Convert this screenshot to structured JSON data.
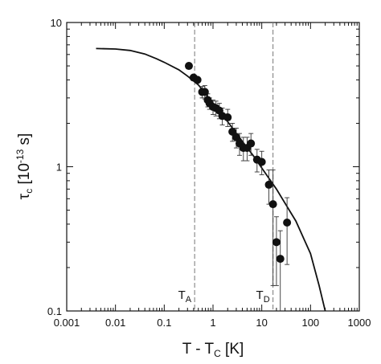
{
  "chart_data": {
    "type": "scatter",
    "x_scale": "log",
    "y_scale": "log",
    "xlim": [
      0.001,
      1000
    ],
    "ylim": [
      0.1,
      10
    ],
    "grid": false,
    "x_ticks": [
      {
        "value": 0.001,
        "label": "0.001"
      },
      {
        "value": 0.01,
        "label": "0.01"
      },
      {
        "value": 0.1,
        "label": "0.1"
      },
      {
        "value": 1,
        "label": "1"
      },
      {
        "value": 10,
        "label": "10"
      },
      {
        "value": 100,
        "label": "100"
      },
      {
        "value": 1000,
        "label": "1000"
      }
    ],
    "y_ticks": [
      {
        "value": 0.1,
        "label": "0.1"
      },
      {
        "value": 1,
        "label": "1"
      },
      {
        "value": 10,
        "label": "10"
      }
    ],
    "xlabel": {
      "main": "T - T",
      "sub": "C",
      "tail": " [K]"
    },
    "ylabel": {
      "main": "τ",
      "sub": "c",
      "mid": " [10",
      "sup": "-13",
      "tail": " s]"
    },
    "markers": [
      {
        "x": 0.42,
        "main": "T",
        "sub": "A"
      },
      {
        "x": 17,
        "main": "T",
        "sub": "D"
      }
    ],
    "points": [
      {
        "x": 0.32,
        "y": 5.0,
        "err": 0
      },
      {
        "x": 0.4,
        "y": 4.15,
        "err": 0
      },
      {
        "x": 0.48,
        "y": 4.0,
        "err": 0
      },
      {
        "x": 0.6,
        "y": 3.3,
        "err": 0.3
      },
      {
        "x": 0.68,
        "y": 3.3,
        "err": 0.35
      },
      {
        "x": 0.78,
        "y": 2.9,
        "err": 0.3
      },
      {
        "x": 0.85,
        "y": 2.75,
        "err": 0.25
      },
      {
        "x": 1.0,
        "y": 2.6,
        "err": 0.3
      },
      {
        "x": 1.15,
        "y": 2.55,
        "err": 0.3
      },
      {
        "x": 1.35,
        "y": 2.45,
        "err": 0.3
      },
      {
        "x": 1.55,
        "y": 2.25,
        "err": 0.3
      },
      {
        "x": 2.0,
        "y": 2.2,
        "err": 0.3
      },
      {
        "x": 2.5,
        "y": 1.75,
        "err": 0.25
      },
      {
        "x": 3.0,
        "y": 1.6,
        "err": 0.25
      },
      {
        "x": 3.5,
        "y": 1.45,
        "err": 0.25
      },
      {
        "x": 4.2,
        "y": 1.35,
        "err": 0.25
      },
      {
        "x": 5.0,
        "y": 1.35,
        "err": 0.25
      },
      {
        "x": 6.0,
        "y": 1.45,
        "err": 0.25
      },
      {
        "x": 8.0,
        "y": 1.12,
        "err": 0.2
      },
      {
        "x": 10.0,
        "y": 1.08,
        "err": 0.2
      },
      {
        "x": 14.0,
        "y": 0.75,
        "err": 0.2
      },
      {
        "x": 17.0,
        "y": 0.55,
        "err": 0.4
      },
      {
        "x": 20.0,
        "y": 0.3,
        "err": 0.15
      },
      {
        "x": 24.0,
        "y": 0.23,
        "err": 0.13
      },
      {
        "x": 33.0,
        "y": 0.41,
        "err": 0.2
      }
    ],
    "fit_curve": [
      [
        0.004,
        6.6
      ],
      [
        0.01,
        6.55
      ],
      [
        0.02,
        6.4
      ],
      [
        0.04,
        6.05
      ],
      [
        0.07,
        5.6
      ],
      [
        0.1,
        5.3
      ],
      [
        0.2,
        4.7
      ],
      [
        0.3,
        4.25
      ],
      [
        0.5,
        3.7
      ],
      [
        1.0,
        2.75
      ],
      [
        2.0,
        2.05
      ],
      [
        4.0,
        1.5
      ],
      [
        7.0,
        1.17
      ],
      [
        10.0,
        0.98
      ],
      [
        20.0,
        0.7
      ],
      [
        50.0,
        0.42
      ],
      [
        100.0,
        0.25
      ],
      [
        150.0,
        0.15
      ],
      [
        200.0,
        0.1
      ]
    ]
  }
}
